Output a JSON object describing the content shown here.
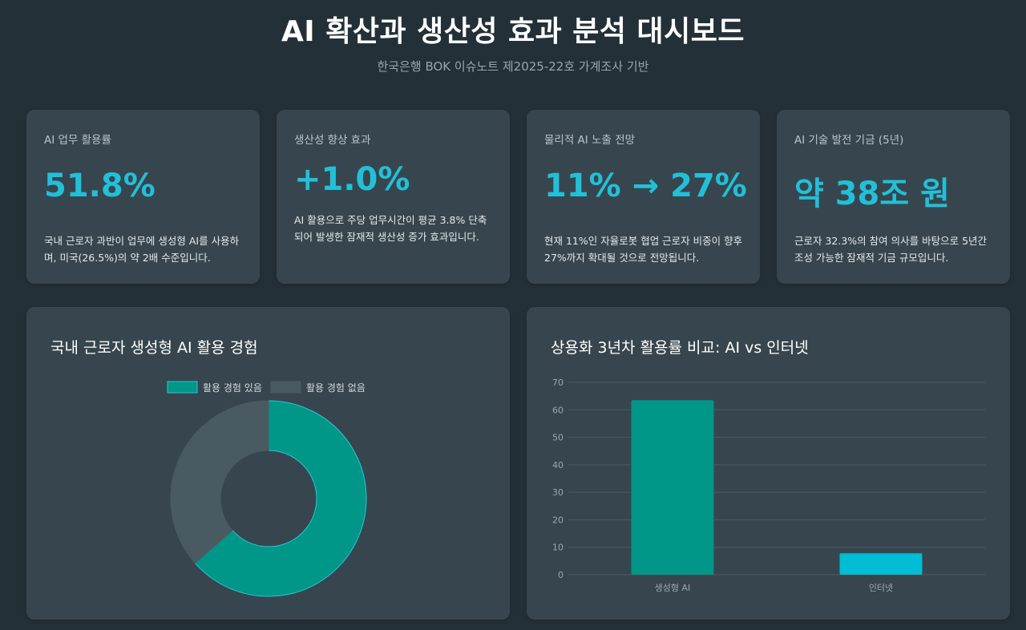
{
  "header": {
    "title": "AI 확산과 생산성 효과 분석 대시보드",
    "subtitle": "한국은행 BOK 이슈노트 제2025-22호 가계조사 기반"
  },
  "cards": [
    {
      "label": "AI 업무 활용률",
      "value": "51.8%",
      "desc": "국내 근로자 과반이 업무에 생성형 AI를 사용하며, 미국(26.5%)의 약 2배 수준입니다."
    },
    {
      "label": "생산성 향상 효과",
      "value": "+1.0%",
      "desc": "AI 활용으로 주당 업무시간이 평균 3.8% 단축되어 발생한 잠재적 생산성 증가 효과입니다."
    },
    {
      "label": "물리적 AI 노출 전망",
      "value": "11% → 27%",
      "desc": "현재 11%인 자율로봇 협업 근로자 비중이 향후 27%까지 확대될 것으로 전망됩니다."
    },
    {
      "label": "AI 기술 발전 기금 (5년)",
      "value": "약 38조 원",
      "desc": "근로자 32.3%의 참여 의사를 바탕으로 5년간 조성 가능한 잠재적 기금 규모입니다."
    }
  ],
  "colors": {
    "accent": "#22c0d8",
    "teal": "#009688",
    "cyan": "#00bcd4",
    "gray_slice": "#4a5a62",
    "panel_bg": "#37464e",
    "page_bg": "#243038"
  },
  "chart_data": [
    {
      "type": "pie",
      "title": "국내 근로자 생성형 AI 활용 경험",
      "categories": [
        "활용 경험 있음",
        "활용 경험 없음"
      ],
      "values": [
        63.5,
        36.5
      ],
      "colors": [
        "#009688",
        "#4a5a62"
      ],
      "legend": "top"
    },
    {
      "type": "bar",
      "title": "상용화 3년차 활용률 비교: AI vs 인터넷",
      "categories": [
        "생성형 AI",
        "인터넷"
      ],
      "values": [
        63.5,
        7.8
      ],
      "colors": [
        "#009688",
        "#00bcd4"
      ],
      "ylim": [
        0,
        70
      ],
      "yticks": [
        0,
        10,
        20,
        30,
        40,
        50,
        60,
        70
      ],
      "grid": true
    }
  ]
}
